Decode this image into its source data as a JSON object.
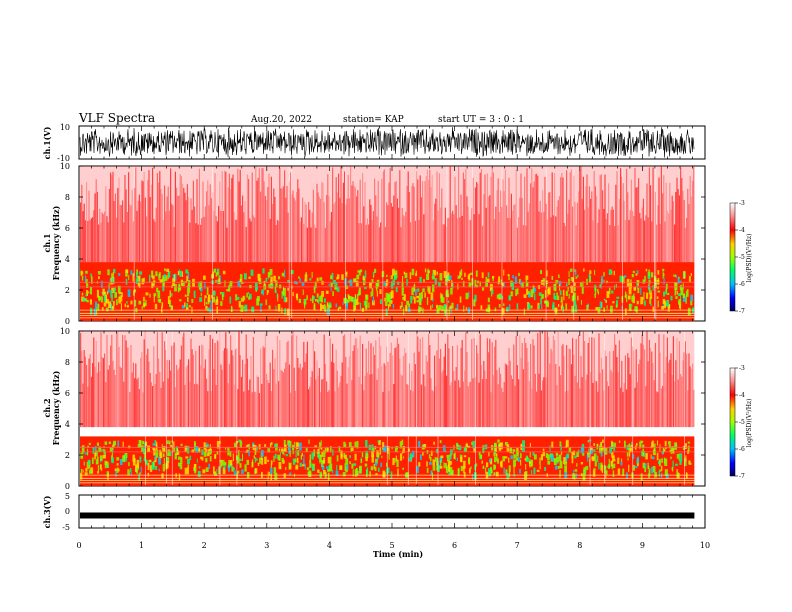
{
  "header": {
    "title": "VLF Spectra",
    "date": "Aug.20, 2022",
    "station": "station= KAP",
    "start": "start  UT  =   3 : 0  : 1"
  },
  "chart_data": [
    {
      "type": "line",
      "name": "ch1-waveform",
      "ylabel": "ch.1(V)",
      "ylim": [
        -10,
        10
      ],
      "yticks": [
        "10",
        "-10"
      ],
      "xlim": [
        0,
        10
      ],
      "description_level": "dense noise waveform between about -10 and 10 V"
    },
    {
      "type": "heatmap",
      "name": "ch1-spectrogram",
      "ylabel_top": "ch.1",
      "ylabel": "Frequency (kHz)",
      "ylim": [
        0,
        10
      ],
      "yticks": [
        "0",
        "2",
        "4",
        "6",
        "8",
        "10"
      ],
      "xlim": [
        0,
        9.83
      ],
      "colorbar": {
        "label": "log(PSD)(V²/Hz)",
        "range": [
          -7,
          -3
        ],
        "ticks": [
          "-3",
          "-4",
          "-5",
          "-6",
          "-7"
        ]
      }
    },
    {
      "type": "heatmap",
      "name": "ch2-spectrogram",
      "ylabel_top": "ch.2",
      "ylabel": "Frequency (kHz)",
      "ylim": [
        0,
        10
      ],
      "yticks": [
        "0",
        "2",
        "4",
        "6",
        "8",
        "10"
      ],
      "xlim": [
        0,
        9.83
      ],
      "colorbar": {
        "label": "log(PSD)(V²/Hz)",
        "range": [
          -7,
          -3
        ],
        "ticks": [
          "-3",
          "-4",
          "-5",
          "-6",
          "-7"
        ]
      }
    },
    {
      "type": "line",
      "name": "ch3-waveform",
      "ylabel": "ch.3(V)",
      "ylim": [
        -5,
        5
      ],
      "yticks": [
        "5",
        "0",
        "-5"
      ],
      "level": -1.2,
      "xlim": [
        0,
        10
      ]
    }
  ],
  "xaxis": {
    "label": "Time (min)",
    "ticks": [
      "0",
      "1",
      "2",
      "3",
      "4",
      "5",
      "6",
      "7",
      "8",
      "9",
      "10"
    ]
  },
  "colors": {
    "waveform": "#000000",
    "low": "#ffffff",
    "mid": "#ff0000",
    "high": "#00ff00"
  }
}
